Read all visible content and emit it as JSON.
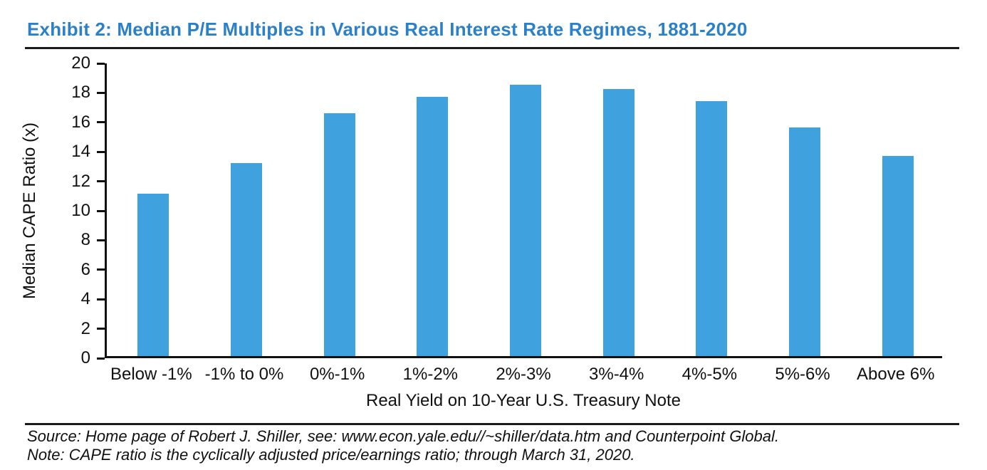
{
  "page": {
    "title": "Exhibit 2: Median P/E Multiples in Various Real Interest Rate Regimes, 1881-2020",
    "source_line": "Source: Home page of Robert J. Shiller, see: www.econ.yale.edu//~shiller/data.htm and Counterpoint Global.",
    "note_line": "Note: CAPE ratio is the cyclically adjusted price/earnings ratio; through March 31, 2020."
  },
  "colors": {
    "bar": "#3fa1dd",
    "title": "#2b80c7",
    "axis": "#111111",
    "rule": "#1a1a1a"
  },
  "chart_data": {
    "type": "bar",
    "title": "Exhibit 2: Median P/E Multiples in Various Real Interest Rate Regimes, 1881-2020",
    "categories": [
      "Below -1%",
      "-1% to 0%",
      "0%-1%",
      "1%-2%",
      "2%-3%",
      "3%-4%",
      "4%-5%",
      "5%-6%",
      "Above 6%"
    ],
    "values": [
      11.0,
      13.1,
      16.5,
      17.6,
      18.4,
      18.1,
      17.3,
      15.5,
      13.6
    ],
    "xlabel": "Real Yield on 10-Year U.S. Treasury Note",
    "ylabel": "Median CAPE Ratio (x)",
    "ylim": [
      0,
      20
    ],
    "ytick_step": 2,
    "grid": false,
    "legend": "none",
    "bar_color": "#3fa1dd"
  }
}
